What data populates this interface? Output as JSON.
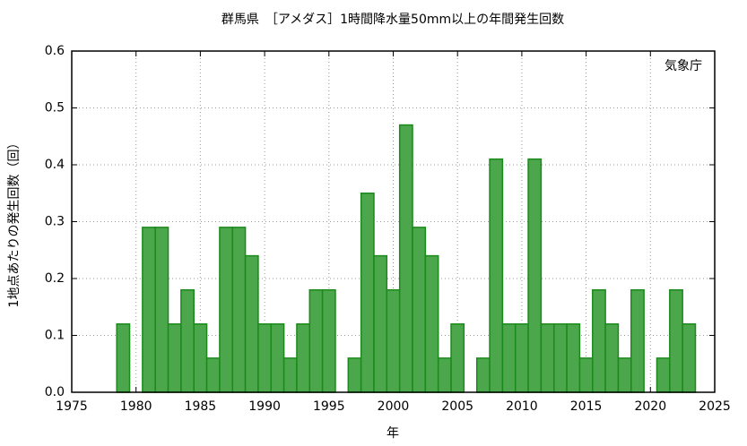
{
  "chart_data": {
    "type": "bar",
    "title": "群馬県　［アメダス］1時間降水量50mm以上の年間発生回数",
    "x_label": "年",
    "y_label": "1地点あたりの発生回数（回）",
    "annotation": "気象庁",
    "x": [
      1979,
      1980,
      1981,
      1982,
      1983,
      1984,
      1985,
      1986,
      1987,
      1988,
      1989,
      1990,
      1991,
      1992,
      1993,
      1994,
      1995,
      1996,
      1997,
      1998,
      1999,
      2000,
      2001,
      2002,
      2003,
      2004,
      2005,
      2006,
      2007,
      2008,
      2009,
      2010,
      2011,
      2012,
      2013,
      2014,
      2015,
      2016,
      2017,
      2018,
      2019,
      2020,
      2021,
      2022,
      2023
    ],
    "values": [
      0.12,
      0,
      0.29,
      0.29,
      0.12,
      0.18,
      0.12,
      0.06,
      0.29,
      0.29,
      0.24,
      0.12,
      0.12,
      0.06,
      0.12,
      0.18,
      0.18,
      0,
      0.06,
      0.35,
      0.24,
      0.18,
      0.47,
      0.29,
      0.24,
      0.06,
      0.12,
      0,
      0.06,
      0.41,
      0.12,
      0.12,
      0.41,
      0.12,
      0.12,
      0.12,
      0.06,
      0.18,
      0.12,
      0.06,
      0.18,
      0,
      0.06,
      0.18,
      0.12
    ],
    "color": "#4ca64c",
    "edge_color": "#1a8a1a",
    "xlim": [
      1975,
      2025
    ],
    "xticks": [
      1975,
      1980,
      1985,
      1990,
      1995,
      2000,
      2005,
      2010,
      2015,
      2020,
      2025
    ],
    "ylim": [
      0,
      0.6
    ],
    "yticks": [
      {
        "value": 0,
        "label": "0.0"
      },
      0.1,
      0.2,
      0.3,
      0.4,
      0.5,
      0.6
    ],
    "grid": true
  }
}
